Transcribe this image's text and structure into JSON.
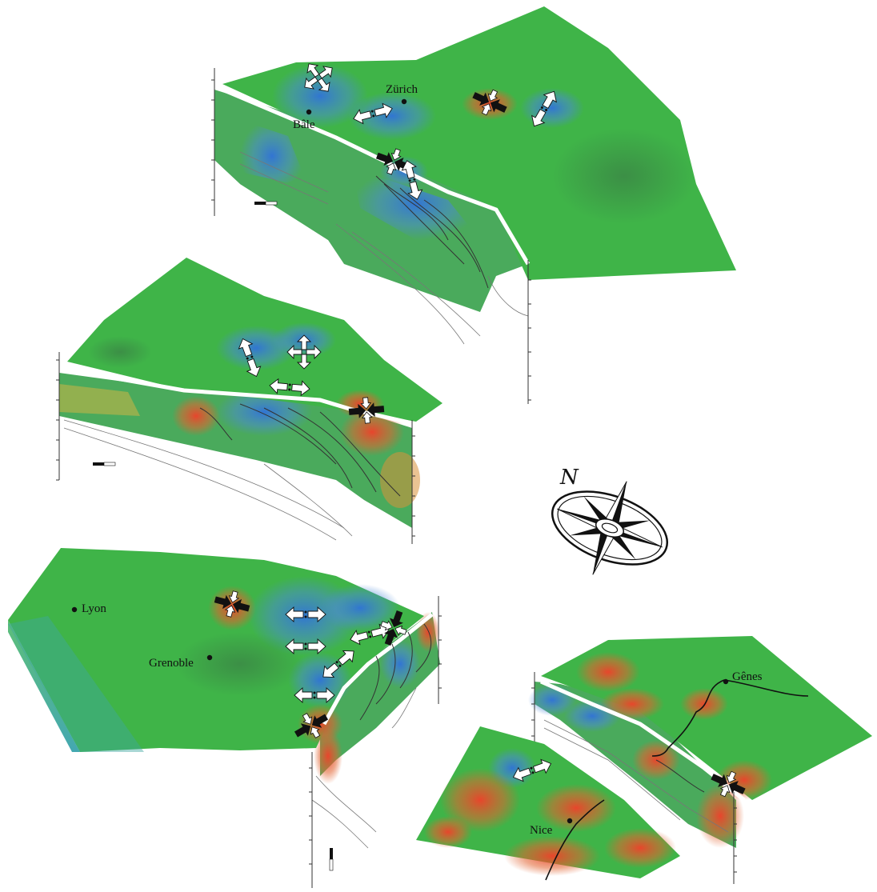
{
  "cities": {
    "zurich": "Zürich",
    "bale": "Bâle",
    "lyon": "Lyon",
    "grenoble": "Grenoble",
    "genes": "Gênes",
    "nice": "Nice"
  },
  "compass": {
    "north_label": "N"
  },
  "colors": {
    "surface_green": "#3fb448",
    "uplift_red": "#e8422a",
    "subsidence_blue": "#3a7fd8",
    "divider_white": "#ffffff",
    "compression_arrow": "#111111",
    "extension_arrow": "#ffffff"
  },
  "legend_semantics": {
    "compression_arrow_icon": "converging black arrows",
    "extension_arrow_icon": "diverging white arrows"
  }
}
